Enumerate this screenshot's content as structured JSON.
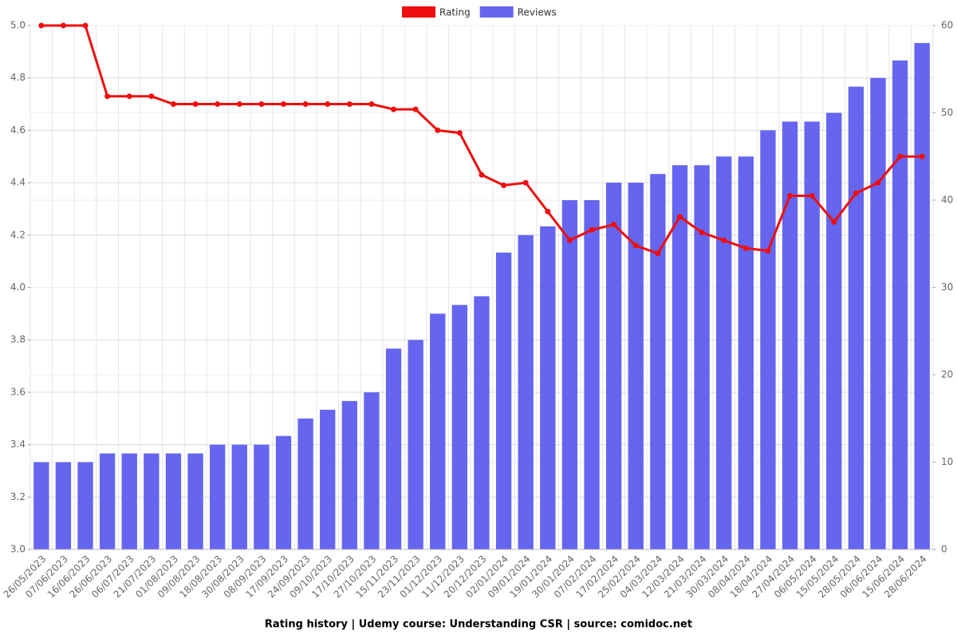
{
  "chart_data": {
    "type": "bar-line",
    "title": "Rating history | Udemy course: Understanding CSR | source: comidoc.net",
    "categories": [
      "26/05/2023",
      "07/06/2023",
      "16/06/2023",
      "26/06/2023",
      "06/07/2023",
      "21/07/2023",
      "01/08/2023",
      "09/08/2023",
      "18/08/2023",
      "30/08/2023",
      "08/09/2023",
      "17/09/2023",
      "24/09/2023",
      "09/10/2023",
      "17/10/2023",
      "27/10/2023",
      "15/11/2023",
      "23/11/2023",
      "01/12/2023",
      "11/12/2023",
      "20/12/2023",
      "02/01/2024",
      "09/01/2024",
      "19/01/2024",
      "30/01/2024",
      "07/02/2024",
      "17/02/2024",
      "25/02/2024",
      "04/03/2024",
      "12/03/2024",
      "21/03/2024",
      "30/03/2024",
      "08/04/2024",
      "18/04/2024",
      "27/04/2024",
      "06/05/2024",
      "15/05/2024",
      "28/05/2024",
      "06/06/2024",
      "15/06/2024",
      "28/06/2024"
    ],
    "series": [
      {
        "name": "Rating",
        "color": "#ee0e0e",
        "type": "line",
        "axis": "y",
        "values": [
          5,
          5,
          5,
          4.73,
          4.73,
          4.73,
          4.7,
          4.7,
          4.7,
          4.7,
          4.7,
          4.7,
          4.7,
          4.7,
          4.7,
          4.7,
          4.68,
          4.68,
          4.6,
          4.59,
          4.43,
          4.39,
          4.4,
          4.29,
          4.18,
          4.22,
          4.24,
          4.16,
          4.13,
          4.27,
          4.21,
          4.18,
          4.15,
          4.14,
          4.35,
          4.35,
          4.25,
          4.36,
          4.4,
          4.5,
          4.5
        ]
      },
      {
        "name": "Reviews",
        "color": "#6565ef",
        "type": "bar",
        "axis": "y2",
        "values": [
          10,
          10,
          10,
          11,
          11,
          11,
          11,
          11,
          12,
          12,
          12,
          13,
          15,
          16,
          17,
          18,
          23,
          24,
          27,
          28,
          29,
          34,
          36,
          37,
          40,
          40,
          42,
          42,
          43,
          44,
          44,
          45,
          45,
          48,
          49,
          49,
          50,
          53,
          54,
          56,
          58
        ]
      }
    ],
    "ylim": [
      3,
      5
    ],
    "yticks": [
      {
        "value": 3,
        "label": "3.0"
      },
      3.2,
      3.4,
      3.6,
      3.8,
      {
        "value": 4,
        "label": "4.0"
      },
      4.2,
      4.4,
      4.6,
      4.8,
      {
        "value": 5,
        "label": "5.0"
      }
    ],
    "y2lim": [
      0,
      60
    ],
    "y2ticks": [
      0,
      10,
      20,
      30,
      40,
      50,
      60
    ],
    "grid": true,
    "legend": "top"
  }
}
